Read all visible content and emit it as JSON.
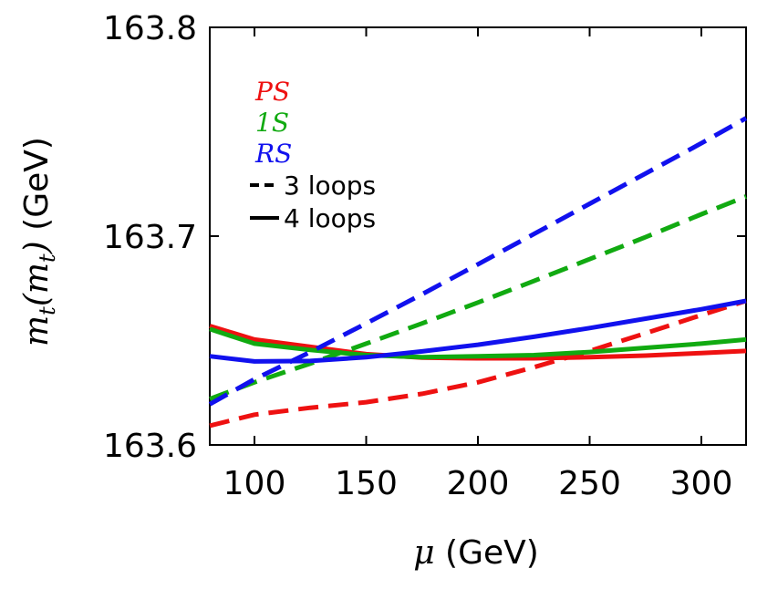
{
  "chart_data": {
    "type": "line",
    "title": "",
    "xlabel": "μ (GeV)",
    "xlabel_symbol": "μ",
    "xlabel_unit": "(GeV)",
    "ylabel": "m_t(m_t) (GeV)",
    "ylabel_unit": "(GeV)",
    "xlim": [
      80,
      320
    ],
    "ylim": [
      163.6,
      163.8
    ],
    "xticks": [
      100,
      150,
      200,
      250,
      300
    ],
    "yticks": [
      163.6,
      163.7,
      163.8
    ],
    "xtick_labels": [
      "100",
      "150",
      "200",
      "250",
      "300"
    ],
    "ytick_labels": [
      "163.6",
      "163.7",
      "163.8"
    ],
    "grid": false,
    "legend_position": "top-left",
    "legend": {
      "schemes": [
        {
          "name": "PS",
          "color": "#ee1111"
        },
        {
          "name": "1S",
          "color": "#11aa11"
        },
        {
          "name": "RS",
          "color": "#1111ee"
        }
      ],
      "styles": [
        {
          "name": "3 loops",
          "dash": true
        },
        {
          "name": "4 loops",
          "dash": false
        }
      ]
    },
    "series": [
      {
        "name": "PS 3 loops",
        "scheme": "PS",
        "loops": 3,
        "color": "#ee1111",
        "dash": true,
        "x": [
          80,
          100,
          125,
          150,
          175,
          200,
          225,
          250,
          275,
          300,
          320
        ],
        "y": [
          163.6092,
          163.6145,
          163.6178,
          163.6205,
          163.6245,
          163.63,
          163.6372,
          163.645,
          163.6535,
          163.6622,
          163.669
        ]
      },
      {
        "name": "PS 4 loops",
        "scheme": "PS",
        "loops": 4,
        "color": "#ee1111",
        "dash": false,
        "x": [
          80,
          100,
          125,
          150,
          175,
          200,
          225,
          250,
          275,
          300,
          320
        ],
        "y": [
          163.657,
          163.6505,
          163.647,
          163.6435,
          163.6418,
          163.6415,
          163.6415,
          163.642,
          163.6428,
          163.644,
          163.645
        ]
      },
      {
        "name": "1S 3 loops",
        "scheme": "1S",
        "loops": 3,
        "color": "#11aa11",
        "dash": true,
        "x": [
          80,
          100,
          125,
          150,
          175,
          200,
          225,
          250,
          275,
          300,
          320
        ],
        "y": [
          163.622,
          163.63,
          163.639,
          163.6485,
          163.6582,
          163.6682,
          163.6785,
          163.689,
          163.6995,
          163.7105,
          163.719
        ]
      },
      {
        "name": "1S 4 loops",
        "scheme": "1S",
        "loops": 4,
        "color": "#11aa11",
        "dash": false,
        "x": [
          80,
          100,
          125,
          150,
          175,
          200,
          225,
          250,
          275,
          300,
          320
        ],
        "y": [
          163.6555,
          163.6485,
          163.6455,
          163.643,
          163.642,
          163.6425,
          163.643,
          163.6445,
          163.6465,
          163.6485,
          163.6505
        ]
      },
      {
        "name": "RS 3 loops",
        "scheme": "RS",
        "loops": 3,
        "color": "#1111ee",
        "dash": true,
        "x": [
          80,
          100,
          125,
          150,
          175,
          200,
          225,
          250,
          275,
          300,
          320
        ],
        "y": [
          163.6195,
          163.6315,
          163.6445,
          163.6582,
          163.6722,
          163.6865,
          163.701,
          163.7155,
          163.73,
          163.7445,
          163.7565
        ]
      },
      {
        "name": "RS 4 loops",
        "scheme": "RS",
        "loops": 4,
        "color": "#1111ee",
        "dash": false,
        "x": [
          80,
          100,
          125,
          150,
          175,
          200,
          225,
          250,
          275,
          300,
          320
        ],
        "y": [
          163.6425,
          163.64,
          163.6402,
          163.642,
          163.6448,
          163.648,
          163.6518,
          163.656,
          163.6605,
          163.665,
          163.669
        ]
      }
    ]
  }
}
